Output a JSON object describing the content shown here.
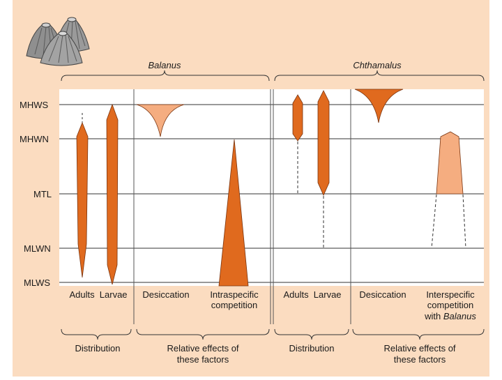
{
  "colors": {
    "background_panel": "#fbdcc0",
    "plot_area": "#ffffff",
    "dark_orange": "#e06a1e",
    "light_orange": "#f5ad80",
    "line": "#333333"
  },
  "tide_levels": [
    "MHWS",
    "MHWN",
    "MTL",
    "MLWN",
    "MLWS"
  ],
  "species": {
    "balanus": "Balanus",
    "chthamalus": "Chthamalus"
  },
  "columns": {
    "balanus_adults_larvae": "Adults  Larvae",
    "balanus_desiccation": "Desiccation",
    "balanus_intraspecific_1": "Intraspecific",
    "balanus_intraspecific_2": "competition",
    "chthamalus_adults_larvae": "Adults  Larvae",
    "chthamalus_desiccation": "Desiccation",
    "chthamalus_interspecific_1": "Interspecific",
    "chthamalus_interspecific_2": "competition",
    "chthamalus_interspecific_3a": "with ",
    "chthamalus_interspecific_3b": "Balanus"
  },
  "groups": {
    "balanus_distribution": "Distribution",
    "balanus_effects_1": "Relative effects of",
    "balanus_effects_2": "these factors",
    "chthamalus_distribution": "Distribution",
    "chthamalus_effects_1": "Relative effects of",
    "chthamalus_effects_2": "these factors"
  },
  "icons": [
    "barnacle-icon"
  ]
}
